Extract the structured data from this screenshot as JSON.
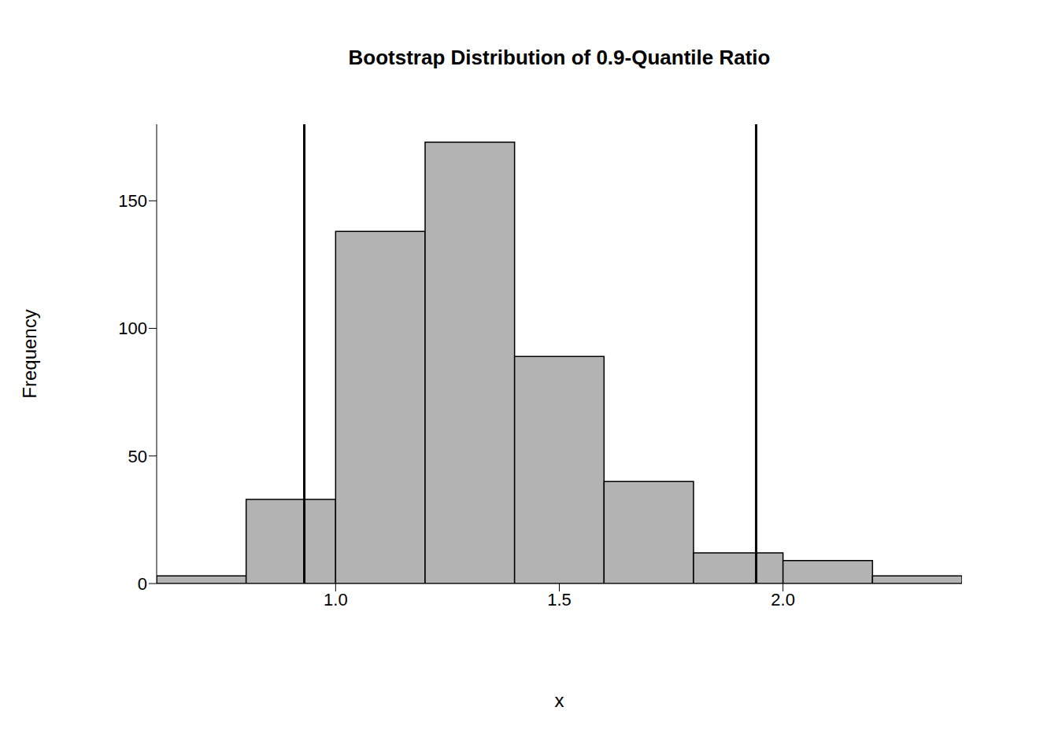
{
  "chart_data": {
    "type": "histogram",
    "title": "Bootstrap Distribution of 0.9-Quantile Ratio",
    "x_label": "x",
    "y_label": "Frequency",
    "bins": [
      0.6,
      0.8,
      1.0,
      1.2,
      1.4,
      1.6,
      1.8,
      2.0,
      2.2,
      2.4
    ],
    "values": [
      3,
      33,
      138,
      173,
      89,
      40,
      12,
      9,
      3
    ],
    "color": "#b3b3b3",
    "vlines": [
      0.93,
      1.94
    ],
    "xlim": [
      0.6,
      2.4
    ],
    "xticks": [
      {
        "value": 1,
        "label": "1.0"
      },
      1.5,
      {
        "value": 2,
        "label": "2.0"
      }
    ],
    "ylim": [
      0,
      180
    ],
    "yticks": [
      0,
      50,
      100,
      150
    ],
    "grid": false
  }
}
